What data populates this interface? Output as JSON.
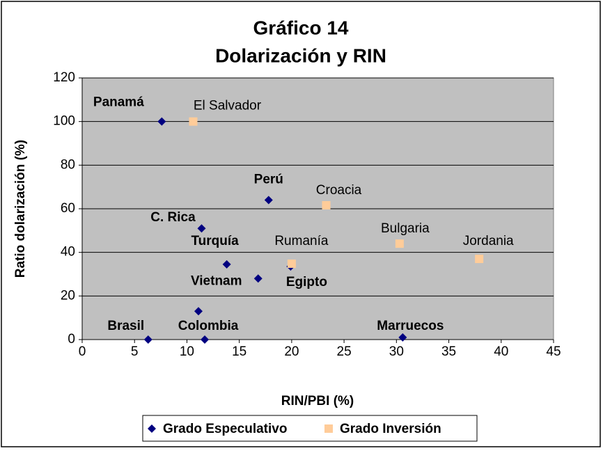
{
  "chart_data": {
    "type": "scatter",
    "title": [
      "Gráfico 14",
      "Dolarización y RIN"
    ],
    "x_label": "RIN/PBI (%)",
    "y_label": "Ratio dolarización (%)",
    "xlim": [
      0,
      45
    ],
    "xticks": [
      0,
      5,
      10,
      15,
      20,
      25,
      30,
      35,
      40,
      45
    ],
    "ylim": [
      0,
      120
    ],
    "yticks": [
      0,
      20,
      40,
      60,
      80,
      100,
      120
    ],
    "grid": true,
    "legend": "bottom",
    "series": [
      {
        "name": "Grado Especulativo",
        "color": "#000080",
        "marker": "diamond",
        "x": [
          7.6,
          11.4,
          17.8,
          13.8,
          16.8,
          19.9,
          11.1,
          11.7,
          6.3,
          30.6
        ],
        "values": [
          100,
          51,
          64,
          34.5,
          28,
          33.5,
          13,
          0,
          0,
          1
        ],
        "labels": [
          "Panamá",
          "C. Rica",
          "Perú",
          "Turquía",
          "Vietnam",
          "Egipto",
          null,
          "Colombia",
          "Brasil",
          "Marruecos"
        ]
      },
      {
        "name": "Grado Inversión",
        "color": "#ffcc99",
        "marker": "square",
        "x": [
          10.6,
          23.3,
          20.0,
          30.3,
          37.9
        ],
        "values": [
          100,
          61.6,
          34.8,
          44,
          37
        ],
        "labels": [
          "El Salvador",
          "Croacia",
          "Rumanía",
          "Bulgaria",
          "Jordania"
        ]
      }
    ]
  }
}
